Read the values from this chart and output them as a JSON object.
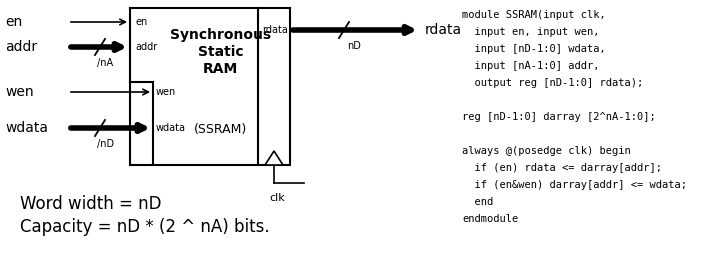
{
  "bg_color": "#ffffff",
  "code_lines": [
    "module SSRAM(input clk,",
    "  input en, input wen,",
    "  input [nD-1:0] wdata,",
    "  input [nA-1:0] addr,",
    "  output reg [nD-1:0] rdata);",
    "",
    "reg [nD-1:0] darray [2^nA-1:0];",
    "",
    "always @(posedge clk) begin",
    "  if (en) rdata <= darray[addr];",
    "  if (en&wen) darray[addr] <= wdata;",
    "  end",
    "endmodule"
  ],
  "bottom_text1": "Word width = nD",
  "bottom_text2": "Capacity = nD * (2 ^ nA) bits."
}
